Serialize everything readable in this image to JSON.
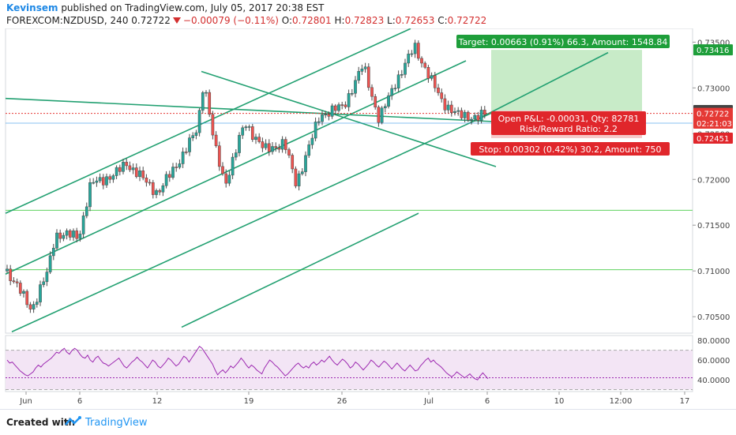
{
  "header": {
    "author": "Kevinsem",
    "published_text": " published on TradingView.com, July 05, 2017 20:38 EST",
    "symbol": "FOREXCOM:NZDUSD, 240",
    "last": "0.72722",
    "change": "−0.00079 (−0.11%)",
    "o_label": "O:",
    "o": "0.72801",
    "h_label": "H:",
    "h": "0.72823",
    "l_label": "L:",
    "l": "0.72653",
    "c_label": "C:",
    "c": "0.72722"
  },
  "footer": {
    "created_with": "Created with",
    "brand": "TradingView"
  },
  "colors": {
    "up": "#26a69a",
    "down": "#ef5350",
    "channel": "#22a071",
    "target_bg": "#c8ebc8",
    "stop_bg": "#f6c9c9",
    "target_label": "#1e9e3a",
    "stop_label": "#e0262b",
    "rsi_line": "#9c27b0",
    "rsi_band": "#f3e5f5"
  },
  "chart_data": {
    "type": "candlestick",
    "price_axis": {
      "ticks": [
        "0.73500",
        "0.73000",
        "0.72500",
        "0.72000",
        "0.71500",
        "0.71000",
        "0.70500"
      ],
      "range": [
        0.7032,
        0.7365
      ]
    },
    "time_axis": {
      "labels": [
        "Jun",
        "6",
        "12",
        "19",
        "26",
        "Jul",
        "6",
        "10",
        "12:00",
        "17"
      ]
    },
    "price_tags": [
      {
        "value": "0.73416",
        "style": "target",
        "price": 0.73416
      },
      {
        "value": "0.72753",
        "style": "dark",
        "price": 0.72753
      },
      {
        "value": "0.72722",
        "style": "current",
        "price": 0.72722
      },
      {
        "value": "02:21:03",
        "style": "countdown",
        "price": 0.72615
      },
      {
        "value": "0.72451",
        "style": "stop",
        "price": 0.72451
      }
    ],
    "position": {
      "target_text": "Target: 0.00663 (0.91%) 66.3, Amount: 1548.84",
      "open_pnl_text": "Open P&L: -0.00031, Qty: 82781",
      "rr_text": "Risk/Reward Ratio: 2.2",
      "stop_text": "Stop: 0.00302 (0.42%) 30.2, Amount: 750",
      "entry": 0.72753,
      "target": 0.73416,
      "stop": 0.72451
    },
    "levels": [
      0.71663,
      0.71013
    ],
    "rsi": {
      "ticks": [
        "80.0000",
        "60.0000",
        "40.0000"
      ],
      "range": [
        28,
        85
      ],
      "bands": [
        70,
        30
      ],
      "mid": 42,
      "values": [
        60,
        57,
        58,
        55,
        52,
        49,
        47,
        45,
        44,
        46,
        48,
        52,
        55,
        53,
        56,
        58,
        60,
        62,
        65,
        68,
        67,
        70,
        72,
        68,
        66,
        70,
        72,
        70,
        66,
        63,
        62,
        65,
        60,
        58,
        62,
        64,
        60,
        57,
        56,
        54,
        56,
        58,
        60,
        62,
        58,
        54,
        52,
        55,
        58,
        60,
        63,
        60,
        58,
        55,
        52,
        56,
        60,
        58,
        54,
        52,
        55,
        58,
        62,
        60,
        57,
        54,
        56,
        60,
        64,
        62,
        58,
        62,
        66,
        70,
        74,
        72,
        68,
        64,
        60,
        56,
        50,
        45,
        48,
        50,
        47,
        50,
        54,
        52,
        55,
        58,
        62,
        59,
        55,
        52,
        55,
        53,
        50,
        48,
        46,
        52,
        56,
        60,
        58,
        55,
        53,
        50,
        47,
        44,
        46,
        49,
        52,
        55,
        57,
        54,
        52,
        54,
        52,
        56,
        58,
        55,
        57,
        60,
        58,
        61,
        64,
        60,
        57,
        55,
        58,
        61,
        59,
        56,
        52,
        54,
        58,
        56,
        53,
        50,
        53,
        56,
        60,
        58,
        55,
        53,
        56,
        59,
        57,
        54,
        51,
        54,
        57,
        54,
        51,
        49,
        52,
        55,
        52,
        49,
        50,
        54,
        57,
        60,
        62,
        58,
        60,
        57,
        55,
        53,
        50,
        47,
        45,
        43,
        45,
        48,
        46,
        44,
        42,
        44,
        46,
        43,
        41,
        40,
        44,
        47,
        44,
        41
      ]
    }
  }
}
